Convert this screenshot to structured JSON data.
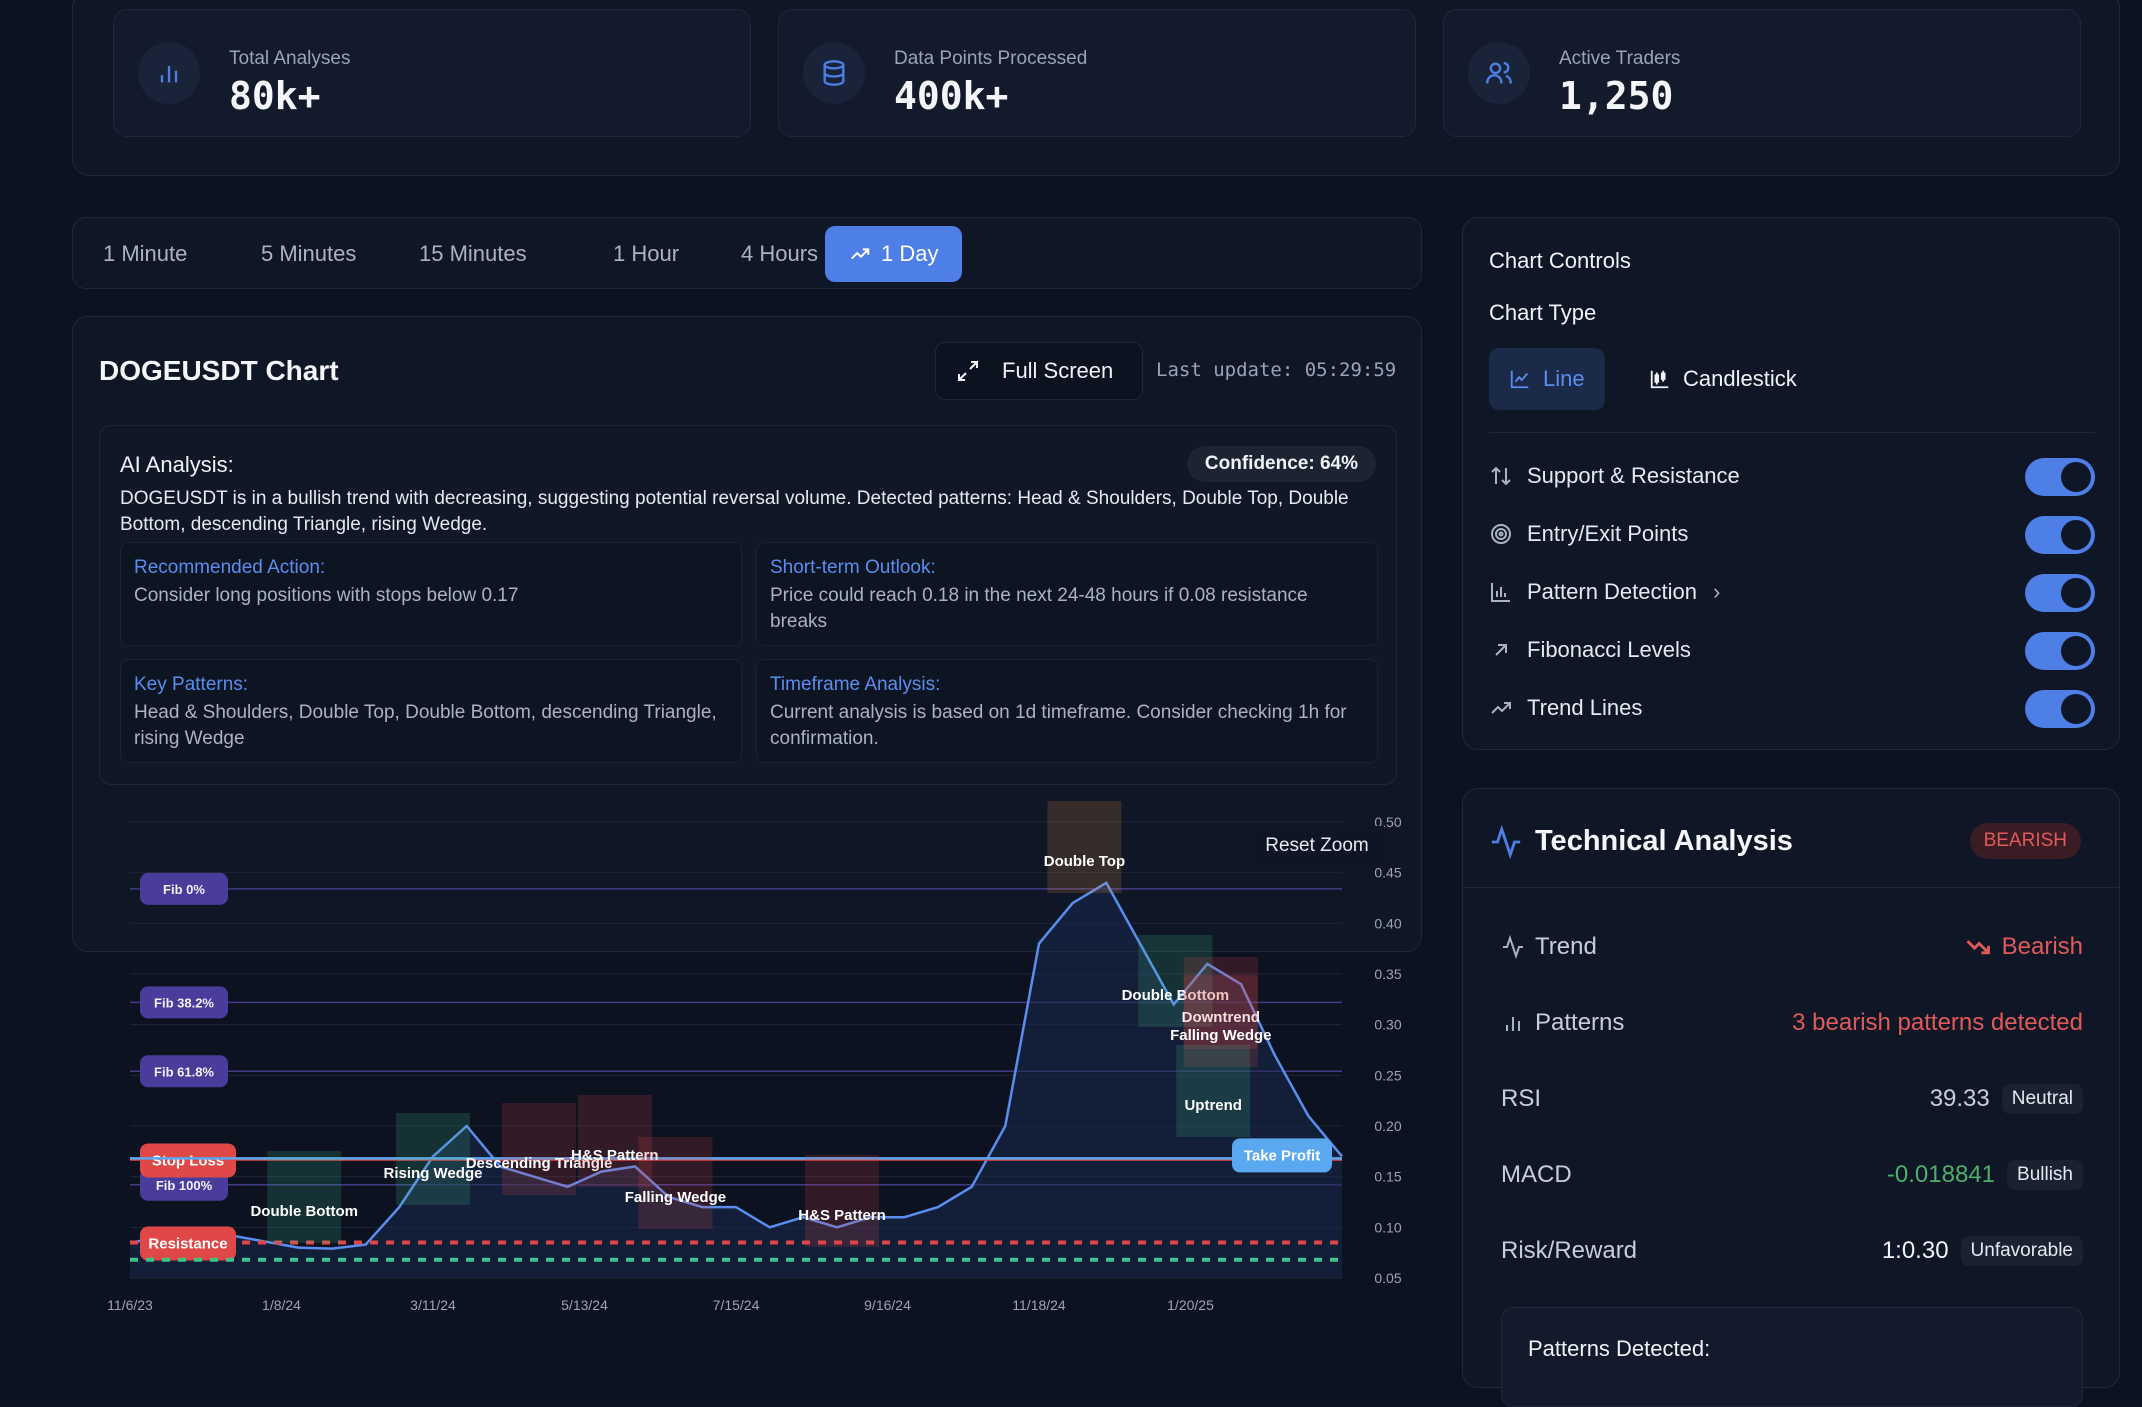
{
  "stats": [
    {
      "label": "Total Analyses",
      "value": "80k+",
      "icon": "bar-chart-icon"
    },
    {
      "label": "Data Points Processed",
      "value": "400k+",
      "icon": "database-icon"
    },
    {
      "label": "Active Traders",
      "value": "1,250",
      "icon": "users-icon"
    }
  ],
  "timeframes": [
    "1 Minute",
    "5 Minutes",
    "15 Minutes",
    "1 Hour",
    "4 Hours",
    "1 Day"
  ],
  "active_timeframe": "1 Day",
  "chart_panel": {
    "title": "DOGEUSDT Chart",
    "fullscreen_label": "Full Screen",
    "last_update": "Last update: 05:29:59",
    "reset_zoom": "Reset Zoom"
  },
  "ai": {
    "title": "AI Analysis:",
    "confidence": "Confidence: 64%",
    "summary": "DOGEUSDT is in a bullish trend with decreasing, suggesting potential reversal volume. Detected patterns: Head & Shoulders, Double Top, Double Bottom, descending Triangle, rising Wedge.",
    "cards": [
      {
        "heading": "Recommended Action:",
        "body": "Consider long positions with stops below 0.17"
      },
      {
        "heading": "Short-term Outlook:",
        "body": "Price could reach 0.18 in the next 24-48 hours if 0.08 resistance breaks"
      },
      {
        "heading": "Key Patterns:",
        "body": "Head & Shoulders, Double Top, Double Bottom, descending Triangle, rising Wedge"
      },
      {
        "heading": "Timeframe Analysis:",
        "body": "Current analysis is based on 1d timeframe. Consider checking 1h for confirmation."
      }
    ]
  },
  "chart_data": {
    "type": "line",
    "x_ticks": [
      "11/6/23",
      "1/8/24",
      "3/11/24",
      "5/13/24",
      "7/15/24",
      "9/16/24",
      "11/18/24",
      "1/20/25"
    ],
    "y_ticks": [
      0.05,
      0.1,
      0.15,
      0.2,
      0.25,
      0.3,
      0.35,
      0.4,
      0.45,
      0.5
    ],
    "ylim": [
      0.05,
      0.5
    ],
    "x": [
      "11/6/23",
      "11/20/23",
      "12/4/23",
      "12/18/23",
      "1/1/24",
      "1/15/24",
      "1/29/24",
      "2/12/24",
      "2/26/24",
      "3/11/24",
      "3/25/24",
      "4/8/24",
      "4/22/24",
      "5/6/24",
      "5/20/24",
      "6/3/24",
      "6/17/24",
      "7/1/24",
      "7/15/24",
      "7/29/24",
      "8/12/24",
      "8/26/24",
      "9/9/24",
      "9/23/24",
      "10/7/24",
      "10/21/24",
      "11/4/24",
      "11/11/24",
      "11/18/24",
      "12/2/24",
      "12/16/24",
      "12/30/24",
      "1/13/25",
      "1/20/25",
      "2/3/25",
      "2/17/25",
      "3/3/25"
    ],
    "y": [
      0.085,
      0.09,
      0.088,
      0.092,
      0.086,
      0.08,
      0.079,
      0.083,
      0.12,
      0.17,
      0.2,
      0.16,
      0.15,
      0.14,
      0.155,
      0.16,
      0.13,
      0.12,
      0.12,
      0.1,
      0.11,
      0.1,
      0.11,
      0.11,
      0.12,
      0.14,
      0.2,
      0.38,
      0.42,
      0.44,
      0.38,
      0.32,
      0.36,
      0.34,
      0.27,
      0.21,
      0.17
    ],
    "fib_levels": [
      {
        "label": "Fib 0%",
        "value": 0.434
      },
      {
        "label": "Fib 38.2%",
        "value": 0.322
      },
      {
        "label": "Fib 61.8%",
        "value": 0.254
      },
      {
        "label": "Fib 100%",
        "value": 0.142
      }
    ],
    "levels": [
      {
        "label": "Stop Loss",
        "value": 0.167,
        "color": "#e04848"
      },
      {
        "label": "Take Profit",
        "value": 0.168,
        "color": "#5aa8f0"
      },
      {
        "label": "Resistance",
        "value": 0.085,
        "color": "#e04848"
      },
      {
        "label": "",
        "value": 0.068,
        "color": "#3fbf8a"
      }
    ],
    "patterns": [
      {
        "label": "Double Bottom",
        "x": 1.15,
        "color": "#3fbf8a"
      },
      {
        "label": "Rising Wedge",
        "x": 2.0,
        "color": "#3fbf8a"
      },
      {
        "label": "Descending Triangle",
        "x": 2.7,
        "color": "#e04848"
      },
      {
        "label": "H&S Pattern",
        "x": 3.2,
        "color": "#e04848"
      },
      {
        "label": "Falling Wedge",
        "x": 3.6,
        "color": "#e04848"
      },
      {
        "label": "H&S Pattern",
        "x": 4.7,
        "color": "#e04848"
      },
      {
        "label": "Double Top",
        "x": 6.3,
        "color": "#e8903a"
      },
      {
        "label": "Double Bottom",
        "x": 6.9,
        "color": "#3fbf8a"
      },
      {
        "label": "Downtrend",
        "x": 7.2,
        "color": "#e04848"
      },
      {
        "label": "Falling Wedge",
        "x": 7.2,
        "color": "#e04848"
      },
      {
        "label": "Uptrend",
        "x": 7.15,
        "color": "#3fbf8a"
      }
    ]
  },
  "controls": {
    "title": "Chart Controls",
    "chart_type_label": "Chart Type",
    "types": [
      "Line",
      "Candlestick"
    ],
    "active_type": "Line",
    "toggles": [
      {
        "label": "Support & Resistance",
        "on": true,
        "icon": "arrows-up-down-icon"
      },
      {
        "label": "Entry/Exit Points",
        "on": true,
        "icon": "target-icon"
      },
      {
        "label": "Pattern Detection",
        "on": true,
        "icon": "bar-chart-icon"
      },
      {
        "label": "Fibonacci Levels",
        "on": true,
        "icon": "arrow-up-right-icon"
      },
      {
        "label": "Trend Lines",
        "on": true,
        "icon": "trending-up-icon"
      }
    ]
  },
  "tech": {
    "title": "Technical Analysis",
    "badge": "BEARISH",
    "trend_label": "Trend",
    "trend_value": "Bearish",
    "patterns_label": "Patterns",
    "patterns_value": "3 bearish patterns detected",
    "rsi_label": "RSI",
    "rsi_value": "39.33",
    "rsi_status": "Neutral",
    "macd_label": "MACD",
    "macd_value": "-0.018841",
    "macd_status": "Bullish",
    "rr_label": "Risk/Reward",
    "rr_value": "1:0.30",
    "rr_status": "Unfavorable",
    "patterns_detected": "Patterns Detected:"
  },
  "colors": {
    "accent": "#4d7fe6",
    "bearish": "#e05a5a",
    "bullish": "#4caf6a",
    "bg": "#0c1220"
  }
}
